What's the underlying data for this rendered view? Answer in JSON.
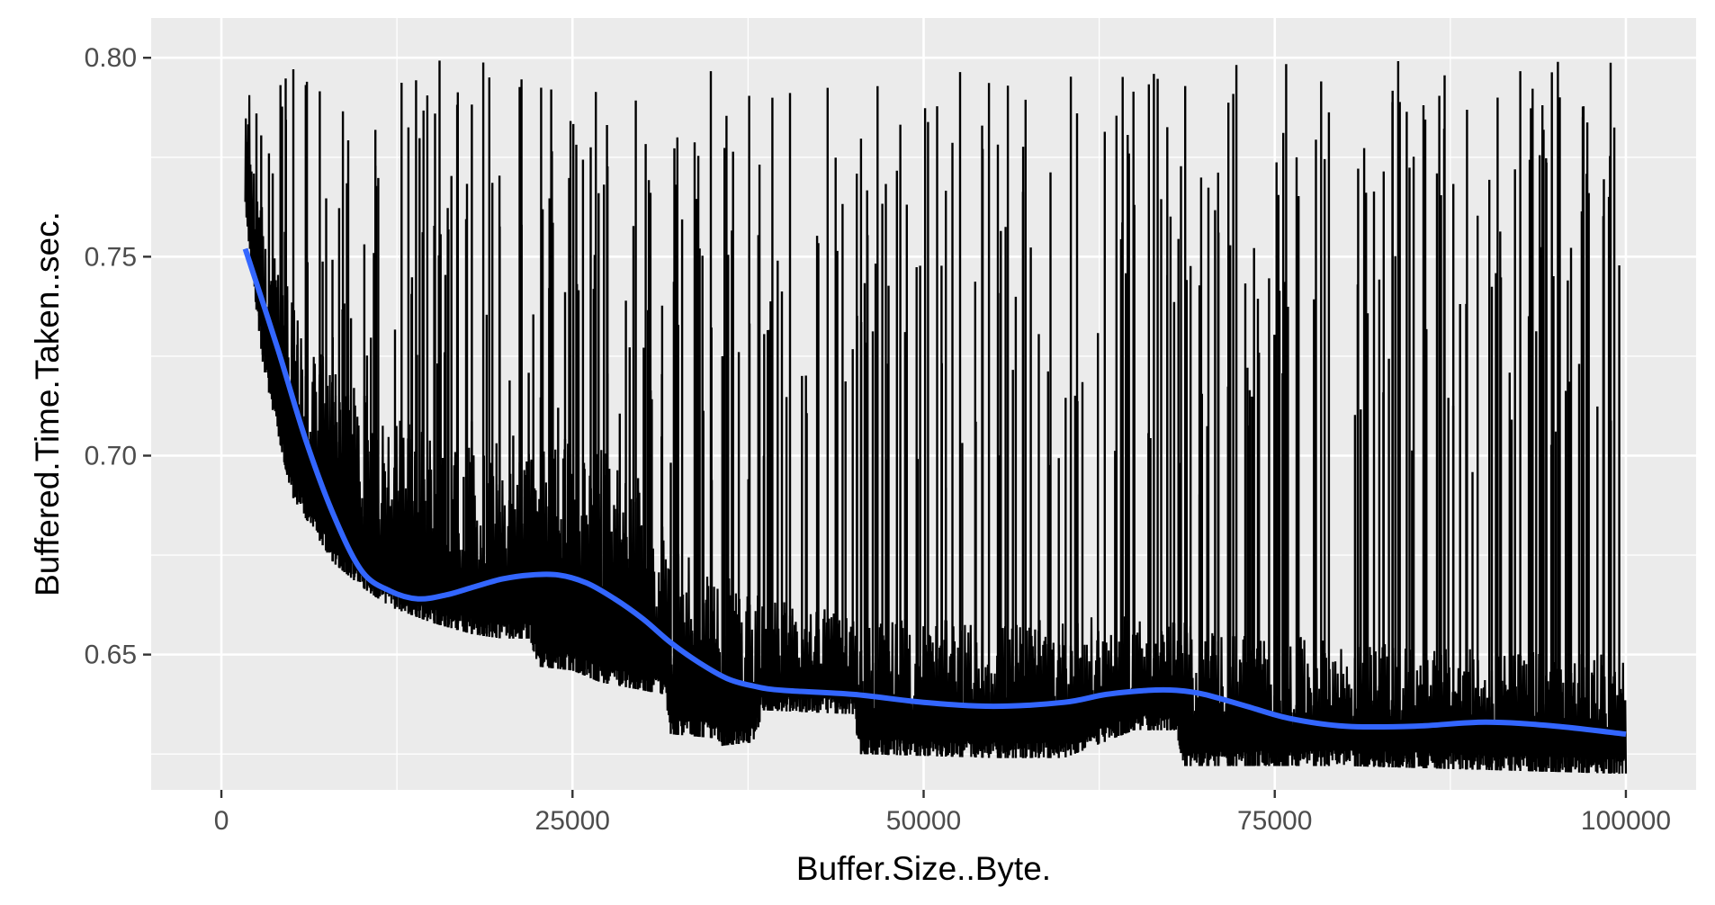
{
  "chart_data": {
    "type": "line",
    "title": "",
    "xlabel": "Buffer.Size..Byte.",
    "ylabel": "Buffered.Time.Taken..sec.",
    "xlim": [
      -5000,
      105000
    ],
    "ylim": [
      0.616,
      0.81
    ],
    "x_ticks": [
      0,
      25000,
      50000,
      75000,
      100000
    ],
    "x_tick_labels": [
      "0",
      "25000",
      "50000",
      "75000",
      "100000"
    ],
    "y_ticks": [
      0.65,
      0.7,
      0.75,
      0.8
    ],
    "y_tick_labels": [
      "0.65",
      "0.70",
      "0.75",
      "0.80"
    ],
    "grid": true,
    "panel_background": "#ebebeb",
    "grid_color": "#ffffff",
    "series": [
      {
        "kind": "raw",
        "color": "#000000",
        "x_range": [
          1700,
          100000
        ],
        "lower_envelope": {
          "x": [
            1700,
            3000,
            5000,
            8000,
            10000,
            12000,
            15000,
            18000,
            20000,
            22000,
            22500,
            25000,
            27000,
            30000,
            31500,
            32000,
            35000,
            35500,
            38000,
            38500,
            45000,
            45500,
            55000,
            60000,
            65000,
            68000,
            68500,
            80000,
            90000,
            100000
          ],
          "y": [
            0.76,
            0.722,
            0.69,
            0.673,
            0.667,
            0.662,
            0.658,
            0.655,
            0.654,
            0.654,
            0.647,
            0.646,
            0.643,
            0.641,
            0.64,
            0.63,
            0.629,
            0.627,
            0.628,
            0.636,
            0.635,
            0.625,
            0.624,
            0.624,
            0.631,
            0.631,
            0.622,
            0.622,
            0.621,
            0.62
          ]
        },
        "upper_dense": {
          "x": [
            1700,
            3000,
            6000,
            10000,
            15000,
            20000,
            25000,
            28000,
            32000,
            38000,
            45000,
            55000,
            65000,
            75000,
            85000,
            100000
          ],
          "y": [
            0.8,
            0.76,
            0.73,
            0.715,
            0.705,
            0.7,
            0.705,
            0.7,
            0.68,
            0.665,
            0.66,
            0.658,
            0.66,
            0.655,
            0.652,
            0.65
          ]
        },
        "spike_peak_range": [
          0.69,
          0.8
        ]
      },
      {
        "kind": "smooth",
        "color": "#3366ff",
        "x": [
          1700,
          4000,
          6000,
          8000,
          10000,
          12000,
          14000,
          16000,
          18000,
          20000,
          22000,
          24000,
          26000,
          28000,
          30000,
          32000,
          34000,
          36000,
          38000,
          40000,
          45000,
          50000,
          55000,
          60000,
          63000,
          66000,
          68000,
          70000,
          73000,
          76000,
          80000,
          85000,
          90000,
          95000,
          100000
        ],
        "y": [
          0.752,
          0.727,
          0.704,
          0.685,
          0.671,
          0.666,
          0.664,
          0.665,
          0.667,
          0.669,
          0.67,
          0.67,
          0.668,
          0.664,
          0.659,
          0.653,
          0.648,
          0.644,
          0.642,
          0.641,
          0.64,
          0.638,
          0.637,
          0.638,
          0.64,
          0.641,
          0.641,
          0.64,
          0.637,
          0.634,
          0.632,
          0.632,
          0.633,
          0.632,
          0.63
        ]
      }
    ]
  }
}
